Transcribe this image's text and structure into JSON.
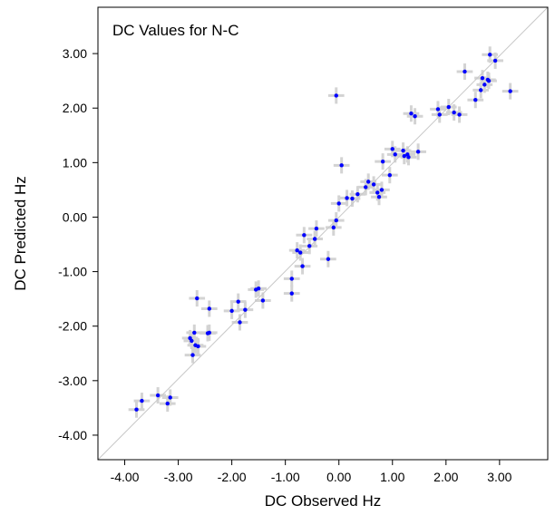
{
  "chart_data": {
    "type": "scatter",
    "title": "DC Values for N-C",
    "xlabel": "DC Observed Hz",
    "ylabel": "DC Predicted Hz",
    "xlim": [
      -4.5,
      3.9
    ],
    "ylim": [
      -4.45,
      3.85
    ],
    "x_ticks": [
      "-4.00",
      "-3.00",
      "-2.00",
      "-1.00",
      "0.00",
      "1.00",
      "2.00",
      "3.00"
    ],
    "y_ticks": [
      "-4.00",
      "-3.00",
      "-2.00",
      "-1.00",
      "0.00",
      "1.00",
      "2.00",
      "3.00"
    ],
    "x_tick_values": [
      -4,
      -3,
      -2,
      -1,
      0,
      1,
      2,
      3
    ],
    "y_tick_values": [
      -4,
      -3,
      -2,
      -1,
      0,
      1,
      2,
      3
    ],
    "error": 0.15,
    "reference_line": {
      "from": [
        -4.5,
        -4.45
      ],
      "to": [
        3.9,
        3.85
      ]
    },
    "grid": false,
    "colors": {
      "point": "#0000ff",
      "error_bar": "#d3d3d3",
      "reference_line": "#c8c8c8",
      "axes": "#000000"
    },
    "points": [
      [
        -3.78,
        -3.53
      ],
      [
        -3.68,
        -3.37
      ],
      [
        -3.38,
        -3.27
      ],
      [
        -3.2,
        -3.42
      ],
      [
        -3.15,
        -3.31
      ],
      [
        -2.78,
        -2.22
      ],
      [
        -2.75,
        -2.27
      ],
      [
        -2.73,
        -2.53
      ],
      [
        -2.7,
        -2.12
      ],
      [
        -2.68,
        -2.35
      ],
      [
        -2.65,
        -1.49
      ],
      [
        -2.63,
        -2.37
      ],
      [
        -2.45,
        -2.13
      ],
      [
        -2.42,
        -2.12
      ],
      [
        -2.42,
        -1.68
      ],
      [
        -2.0,
        -1.72
      ],
      [
        -1.88,
        -1.55
      ],
      [
        -1.85,
        -1.93
      ],
      [
        -1.75,
        -1.7
      ],
      [
        -1.55,
        -1.33
      ],
      [
        -1.5,
        -1.31
      ],
      [
        -1.42,
        -1.53
      ],
      [
        -0.88,
        -1.13
      ],
      [
        -0.88,
        -1.4
      ],
      [
        -0.78,
        -0.61
      ],
      [
        -0.72,
        -0.65
      ],
      [
        -0.68,
        -0.9
      ],
      [
        -0.65,
        -0.33
      ],
      [
        -0.55,
        -0.53
      ],
      [
        -0.45,
        -0.4
      ],
      [
        -0.42,
        -0.21
      ],
      [
        -0.2,
        -0.77
      ],
      [
        -0.1,
        -0.19
      ],
      [
        -0.05,
        -0.06
      ],
      [
        -0.05,
        2.23
      ],
      [
        0.0,
        0.25
      ],
      [
        0.05,
        0.95
      ],
      [
        0.15,
        0.35
      ],
      [
        0.25,
        0.34
      ],
      [
        0.35,
        0.42
      ],
      [
        0.5,
        0.55
      ],
      [
        0.55,
        0.65
      ],
      [
        0.65,
        0.6
      ],
      [
        0.72,
        0.45
      ],
      [
        0.75,
        0.37
      ],
      [
        0.8,
        0.5
      ],
      [
        0.82,
        1.02
      ],
      [
        0.95,
        0.77
      ],
      [
        1.0,
        1.25
      ],
      [
        1.05,
        1.15
      ],
      [
        1.2,
        1.22
      ],
      [
        1.22,
        1.12
      ],
      [
        1.28,
        1.15
      ],
      [
        1.3,
        1.1
      ],
      [
        1.35,
        1.9
      ],
      [
        1.42,
        1.85
      ],
      [
        1.48,
        1.2
      ],
      [
        1.85,
        1.98
      ],
      [
        1.88,
        1.88
      ],
      [
        2.05,
        2.02
      ],
      [
        2.15,
        1.92
      ],
      [
        2.25,
        1.88
      ],
      [
        2.35,
        2.67
      ],
      [
        2.55,
        2.15
      ],
      [
        2.65,
        2.33
      ],
      [
        2.68,
        2.55
      ],
      [
        2.72,
        2.43
      ],
      [
        2.78,
        2.52
      ],
      [
        2.8,
        2.5
      ],
      [
        2.82,
        2.98
      ],
      [
        2.92,
        2.87
      ],
      [
        3.2,
        2.31
      ]
    ]
  }
}
